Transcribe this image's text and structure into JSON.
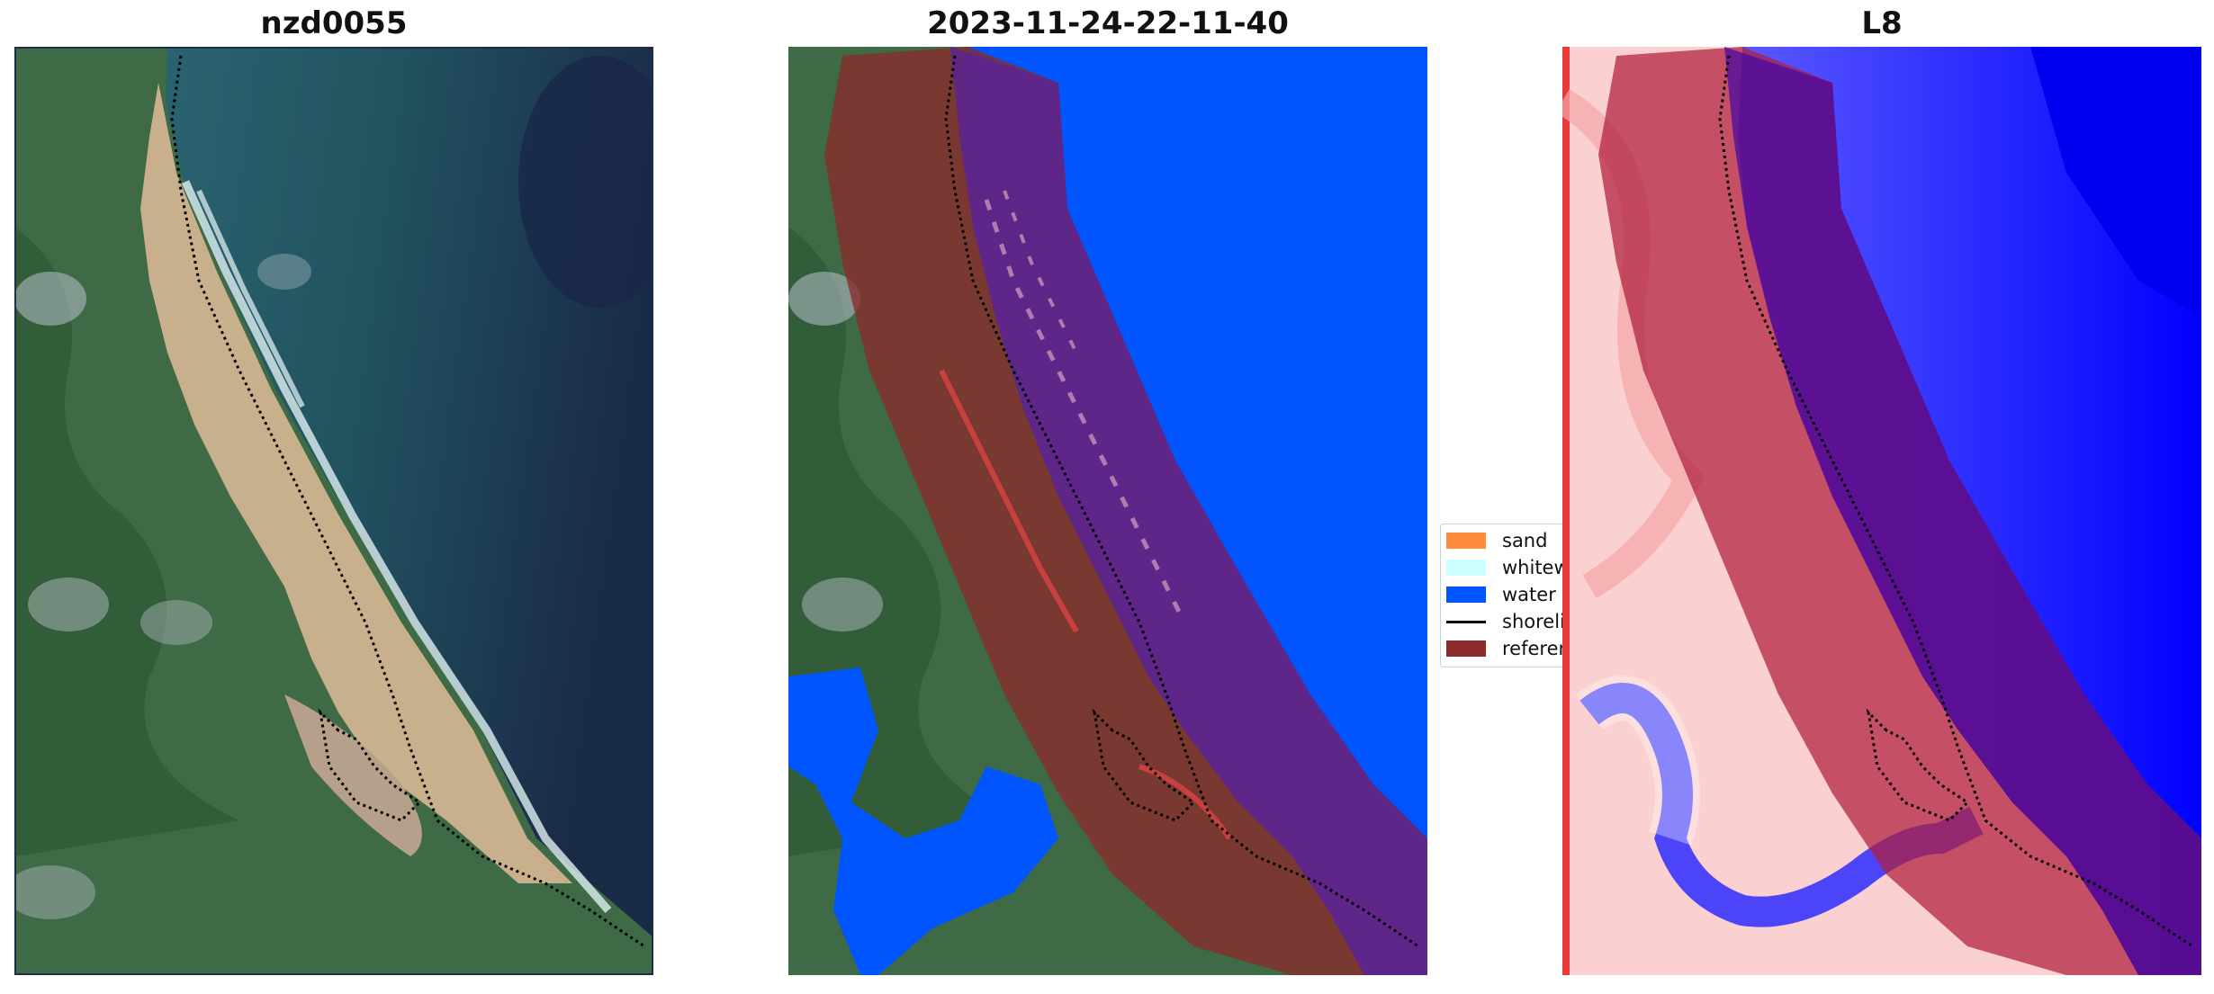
{
  "panels": [
    {
      "title": "nzd0055"
    },
    {
      "title": "2023-11-24-22-11-40"
    },
    {
      "title": "L8"
    }
  ],
  "legend": {
    "items": [
      {
        "label": "sand",
        "color": "#ff8c3a"
      },
      {
        "label": "whitewater",
        "color": "#ccffff"
      },
      {
        "label": "water",
        "color": "#0055ff"
      },
      {
        "label": "shoreline",
        "color": "#000000"
      },
      {
        "label": "reference shoreline buffer",
        "color": "#8b2a2a"
      }
    ]
  }
}
